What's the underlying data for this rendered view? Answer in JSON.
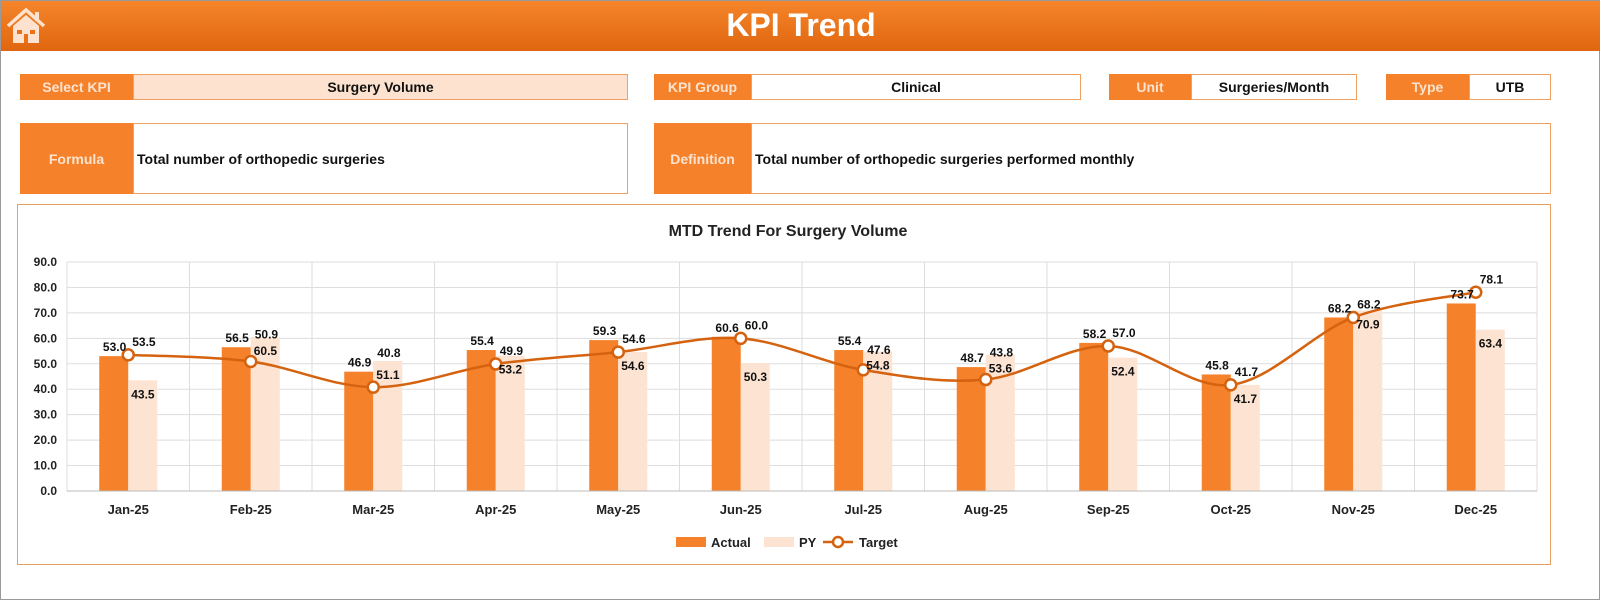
{
  "header": {
    "title": "KPI Trend",
    "home_icon": "home-icon"
  },
  "fields": {
    "select_kpi_label": "Select KPI",
    "select_kpi_value": "Surgery Volume",
    "kpi_group_label": "KPI Group",
    "kpi_group_value": "Clinical",
    "unit_label": "Unit",
    "unit_value": "Surgeries/Month",
    "type_label": "Type",
    "type_value": "UTB",
    "formula_label": "Formula",
    "formula_value": "Total number of orthopedic surgeries",
    "definition_label": "Definition",
    "definition_value": "Total number of orthopedic surgeries performed monthly"
  },
  "colors": {
    "actual": "#f5812a",
    "py": "#fde3d2",
    "target": "#d4620f"
  },
  "chart_data": {
    "type": "bar",
    "title": "MTD Trend For Surgery Volume",
    "categories": [
      "Jan-25",
      "Feb-25",
      "Mar-25",
      "Apr-25",
      "May-25",
      "Jun-25",
      "Jul-25",
      "Aug-25",
      "Sep-25",
      "Oct-25",
      "Nov-25",
      "Dec-25"
    ],
    "series": [
      {
        "name": "Actual",
        "type": "bar",
        "values": [
          53.0,
          56.5,
          46.9,
          55.4,
          59.3,
          60.6,
          55.4,
          48.7,
          58.2,
          45.8,
          68.2,
          73.7
        ]
      },
      {
        "name": "PY",
        "type": "bar",
        "values": [
          43.5,
          60.5,
          51.1,
          53.2,
          54.6,
          50.3,
          54.8,
          53.6,
          52.4,
          41.7,
          70.9,
          63.4
        ]
      },
      {
        "name": "Target",
        "type": "line",
        "values": [
          53.5,
          50.9,
          40.8,
          49.9,
          54.6,
          60.0,
          47.6,
          43.8,
          57.0,
          41.7,
          68.2,
          78.1
        ]
      }
    ],
    "ylim": [
      0,
      90
    ],
    "yticks": [
      "0.0",
      "10.0",
      "20.0",
      "30.0",
      "40.0",
      "50.0",
      "60.0",
      "70.0",
      "80.0",
      "90.0"
    ],
    "grid": true,
    "legend": "bottom"
  }
}
